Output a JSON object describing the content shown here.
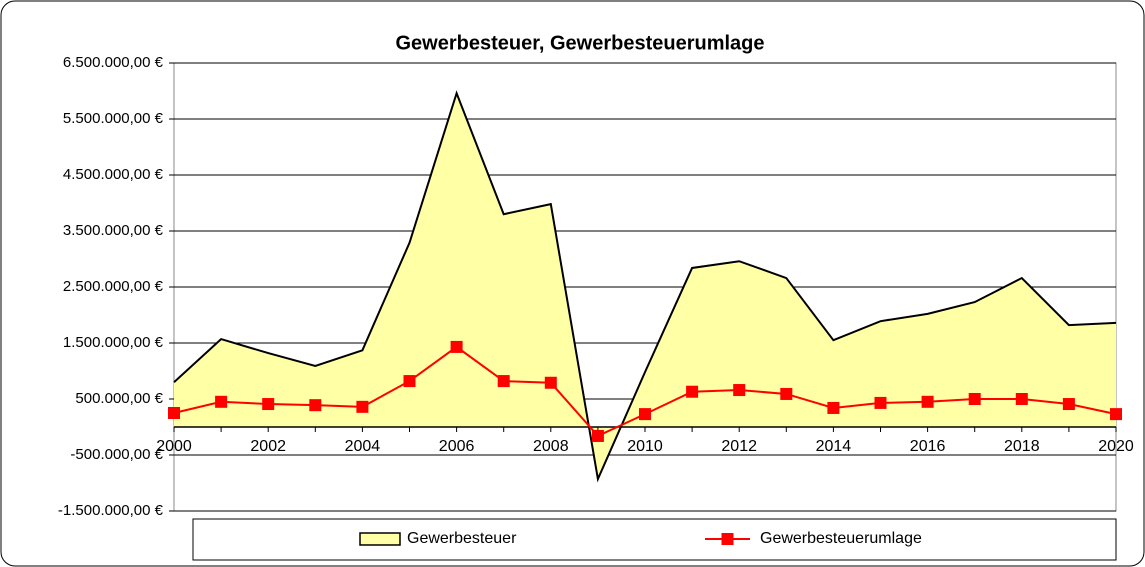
{
  "chart_data": {
    "type": "area-line",
    "title": "Gewerbesteuer, Gewerbesteuerumlage",
    "x": [
      2000,
      2001,
      2002,
      2003,
      2004,
      2005,
      2006,
      2007,
      2008,
      2009,
      2010,
      2011,
      2012,
      2013,
      2014,
      2015,
      2016,
      2017,
      2018,
      2019,
      2020
    ],
    "series": [
      {
        "name": "Gewerbesteuer",
        "type": "area",
        "color": "#ffffa6",
        "values": [
          800000,
          1570000,
          1320000,
          1090000,
          1370000,
          3290000,
          5960000,
          3800000,
          3980000,
          -930000,
          980000,
          2840000,
          2960000,
          2660000,
          1550000,
          1890000,
          2020000,
          2230000,
          2660000,
          1820000,
          1860000
        ]
      },
      {
        "name": "Gewerbesteuerumlage",
        "type": "line",
        "color": "#ff0000",
        "values": [
          250000,
          450000,
          410000,
          390000,
          360000,
          820000,
          1430000,
          820000,
          790000,
          -160000,
          230000,
          630000,
          660000,
          590000,
          340000,
          430000,
          450000,
          500000,
          500000,
          410000,
          230000
        ]
      }
    ],
    "xlim": [
      2000,
      2020
    ],
    "xticks": [
      2000,
      2002,
      2004,
      2006,
      2008,
      2010,
      2012,
      2014,
      2016,
      2018,
      2020
    ],
    "ylim": [
      -1500000,
      6500000
    ],
    "yticks": [
      {
        "value": -1500000,
        "label": "-1.500.000,00 €"
      },
      {
        "value": -500000,
        "label": "-500.000,00 €"
      },
      {
        "value": 500000,
        "label": "500.000,00 €"
      },
      {
        "value": 1500000,
        "label": "1.500.000,00 €"
      },
      {
        "value": 2500000,
        "label": "2.500.000,00 €"
      },
      {
        "value": 3500000,
        "label": "3.500.000,00 €"
      },
      {
        "value": 4500000,
        "label": "4.500.000,00 €"
      },
      {
        "value": 5500000,
        "label": "5.500.000,00 €"
      },
      {
        "value": 6500000,
        "label": "6.500.000,00 €"
      }
    ],
    "grid": true,
    "legend": "bottom"
  }
}
